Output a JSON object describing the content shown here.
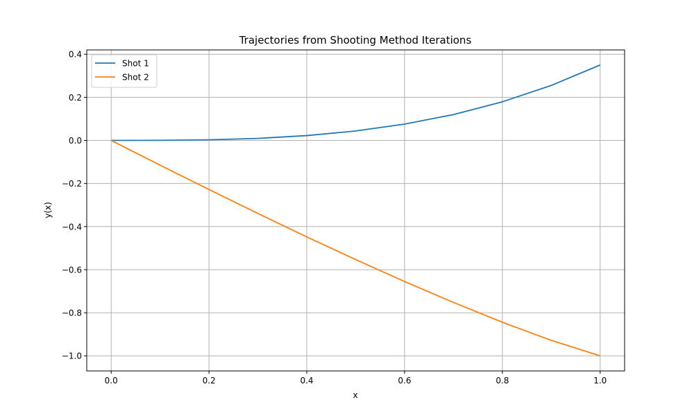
{
  "chart_data": {
    "type": "line",
    "title": "Trajectories from Shooting Method Iterations",
    "xlabel": "x",
    "ylabel": "y(x)",
    "xlim": [
      -0.05,
      1.05
    ],
    "ylim": [
      -1.07,
      0.42
    ],
    "xticks": [
      0.0,
      0.2,
      0.4,
      0.6,
      0.8,
      1.0
    ],
    "xtick_labels": [
      "0.0",
      "0.2",
      "0.4",
      "0.6",
      "0.8",
      "1.0"
    ],
    "yticks": [
      0.4,
      0.2,
      0.0,
      -0.2,
      -0.4,
      -0.6,
      -0.8,
      -1.0
    ],
    "ytick_labels": [
      "0.4",
      "0.2",
      "0.0",
      "−0.2",
      "−0.4",
      "−0.6",
      "−0.8",
      "−1.0"
    ],
    "grid": true,
    "legend_position": "top-left",
    "series": [
      {
        "name": "Shot 1",
        "color": "#1f77b4",
        "x": [
          0.0,
          0.1,
          0.2,
          0.3,
          0.4,
          0.5,
          0.6,
          0.7,
          0.8,
          0.9,
          1.0
        ],
        "y": [
          0.0,
          0.0004,
          0.0028,
          0.0094,
          0.0224,
          0.0438,
          0.0756,
          0.12,
          0.1792,
          0.2552,
          0.35
        ]
      },
      {
        "name": "Shot 2",
        "color": "#ff7f0e",
        "x": [
          0.0,
          0.1,
          0.2,
          0.3,
          0.4,
          0.5,
          0.6,
          0.7,
          0.8,
          0.9,
          1.0
        ],
        "y": [
          0.0,
          -0.115,
          -0.228,
          -0.339,
          -0.448,
          -0.553,
          -0.655,
          -0.752,
          -0.844,
          -0.928,
          -1.0
        ]
      }
    ]
  }
}
